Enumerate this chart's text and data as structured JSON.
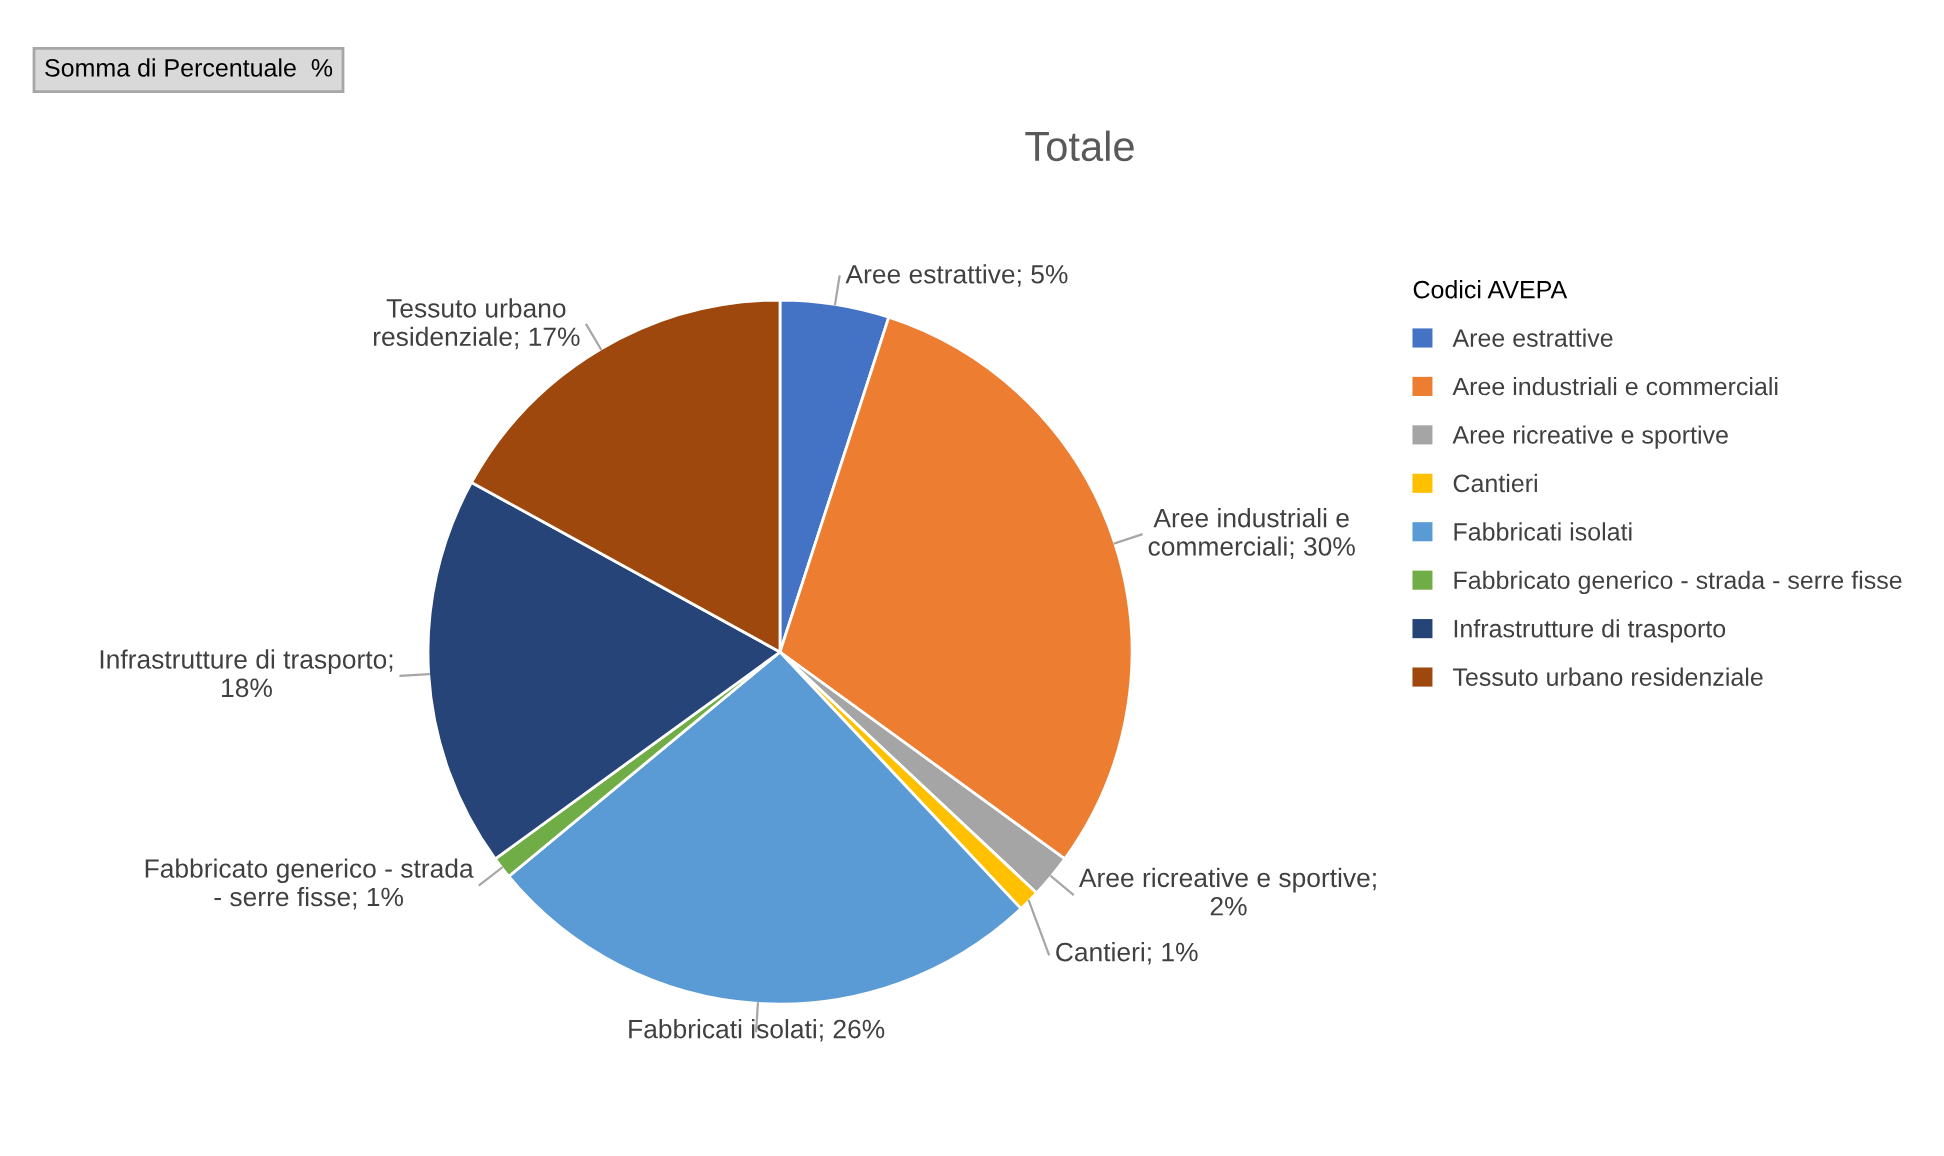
{
  "chart_data": {
    "type": "pie",
    "title": "Totale",
    "legend_title": "Codici AVEPA",
    "legend": "right",
    "categories": [
      "Aree estrattive",
      "Aree industriali e commerciali",
      "Aree ricreative e sportive",
      "Cantieri",
      "Fabbricati isolati",
      "Fabbricato generico - strada - serre fisse",
      "Infrastrutture di trasporto",
      "Tessuto urbano residenziale"
    ],
    "values": [
      5,
      30,
      2,
      1,
      26,
      1,
      18,
      17
    ],
    "colors": [
      "#4472c4",
      "#ed7d31",
      "#a5a5a5",
      "#ffc000",
      "#5b9bd5",
      "#70ad47",
      "#264478",
      "#9e480e"
    ],
    "value_labels": [
      "Aree estrattive; 5%",
      "Aree industriali e\ncommerciali; 30%",
      "Aree ricreative e sportive;\n2%",
      "Cantieri; 1%",
      "Fabbricati isolati; 26%",
      "Fabbricato generico - strada\n- serre fisse; 1%",
      "Infrastrutture di trasporto;\n18%",
      "Tessuto urbano\nresidenziale; 17%"
    ],
    "annotations": [
      "Somma di Percentuale  %"
    ]
  }
}
